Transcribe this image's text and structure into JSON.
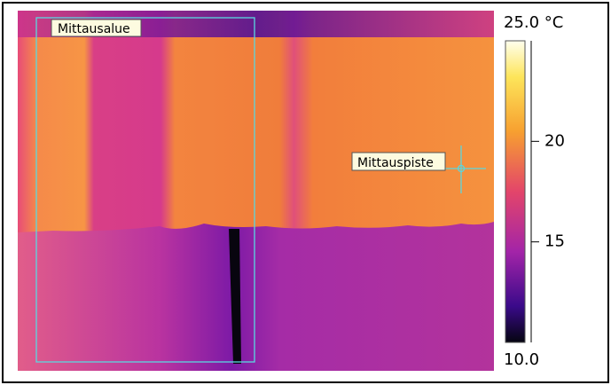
{
  "image": {
    "labels": {
      "area": "Mittausalue",
      "spot": "Mittauspiste"
    }
  },
  "colorbar": {
    "max": {
      "value": 25,
      "label": "25.0 °C"
    },
    "min": {
      "value": 10,
      "label": "10.0"
    },
    "ticks": [
      20,
      15
    ]
  }
}
